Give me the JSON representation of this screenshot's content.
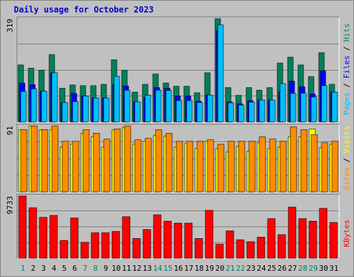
{
  "chart_data": {
    "type": "bar",
    "title": "Daily usage for October 2023",
    "categories": [
      "1",
      "2",
      "3",
      "4",
      "5",
      "6",
      "7",
      "8",
      "9",
      "10",
      "11",
      "12",
      "13",
      "14",
      "15",
      "16",
      "17",
      "18",
      "19",
      "20",
      "21",
      "22",
      "23",
      "24",
      "25",
      "26",
      "27",
      "28",
      "29",
      "30",
      "31"
    ],
    "weekend_days": [
      "1",
      "7",
      "8",
      "14",
      "15",
      "21",
      "22",
      "28",
      "29"
    ],
    "panels": [
      {
        "id": "requests",
        "ymax_label": "319",
        "ymax": 319,
        "side_label": [
          "Pages",
          "Files",
          "Hits"
        ],
        "series": [
          {
            "name": "Hits",
            "color": "#00805c",
            "values": [
              176,
              166,
              160,
              208,
              104,
              114,
              112,
              112,
              116,
              192,
              160,
              92,
              116,
              148,
              120,
              110,
              110,
              90,
              152,
              319,
              106,
              82,
              106,
              98,
              106,
              182,
              200,
              176,
              140,
              214,
              116
            ]
          },
          {
            "name": "Files",
            "color": "#0000ff",
            "values": [
              120,
              115,
              95,
              152,
              60,
              88,
              80,
              74,
              74,
              117,
              111,
              62,
              75,
              106,
              104,
              80,
              80,
              64,
              83,
              282,
              62,
              56,
              66,
              68,
              68,
              94,
              126,
              109,
              86,
              158,
              92
            ]
          },
          {
            "name": "Pages",
            "color": "#00bfff",
            "values": [
              94,
              102,
              95,
              152,
              60,
              63,
              80,
              74,
              74,
              141,
              98,
              62,
              83,
              98,
              97,
              66,
              66,
              60,
              83,
              300,
              59,
              52,
              61,
              68,
              68,
              118,
              88,
              89,
              77,
              112,
              92
            ]
          }
        ]
      },
      {
        "id": "visits",
        "ymax_label": "91",
        "ymax": 91,
        "side_label": [
          "Sites",
          "Visits"
        ],
        "series": [
          {
            "name": "Visits",
            "color": "#ffff00",
            "values": [
              86,
              91,
              86,
              86,
              62,
              66,
              81,
              76,
              62,
              86,
              89,
              66,
              70,
              78,
              77,
              62,
              67,
              60,
              70,
              60,
              55,
              63,
              56,
              68,
              60,
              62,
              76,
              76,
              87,
              61,
              66
            ]
          },
          {
            "name": "Sites",
            "color": "#ff8c00",
            "values": [
              86,
              91,
              86,
              91,
              70,
              70,
              86,
              81,
              73,
              87,
              91,
              72,
              74,
              86,
              81,
              70,
              70,
              70,
              72,
              66,
              70,
              70,
              70,
              76,
              73,
              70,
              90,
              86,
              79,
              68,
              70
            ]
          }
        ]
      },
      {
        "id": "kbytes",
        "ymax_label": "9733",
        "ymax": 9733,
        "side_label": [
          "KBytes"
        ],
        "series": [
          {
            "name": "KBytes",
            "color": "#ff0000",
            "values": [
              9733,
              7900,
              6400,
              6700,
              2800,
              6300,
              2500,
              4000,
              4000,
              4200,
              6500,
              3100,
              4500,
              6800,
              5800,
              5500,
              5500,
              3100,
              7500,
              2200,
              4300,
              2900,
              2600,
              3300,
              6200,
              3700,
              8000,
              6200,
              5800,
              7800,
              5600
            ]
          }
        ]
      }
    ]
  }
}
